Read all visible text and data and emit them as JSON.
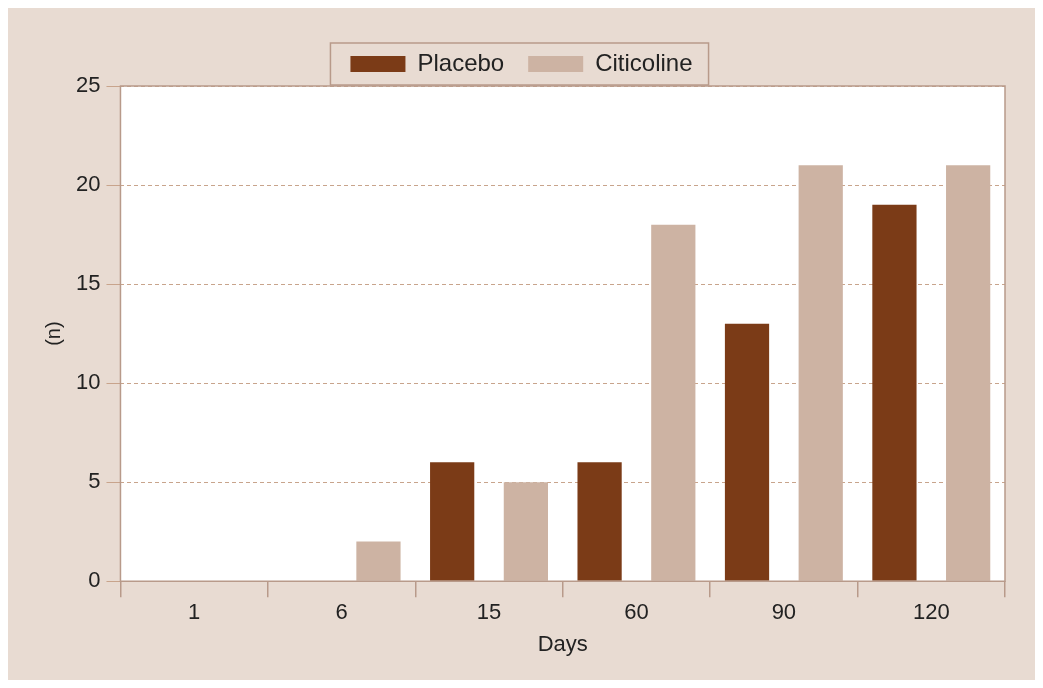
{
  "chart_data": {
    "type": "bar",
    "xlabel": "Days",
    "ylabel": "(n)",
    "categories": [
      "1",
      "6",
      "15",
      "60",
      "90",
      "120"
    ],
    "series": [
      {
        "name": "Placebo",
        "color": "#7b3b17",
        "values": [
          0,
          0,
          6,
          6,
          13,
          19
        ]
      },
      {
        "name": "Citicoline",
        "color": "#cdb3a3",
        "values": [
          0,
          2,
          5,
          18,
          21,
          21
        ]
      }
    ],
    "ylim": [
      0,
      25
    ],
    "yticks": [
      0,
      5,
      10,
      15,
      20,
      25
    ],
    "grid": "y",
    "legend": "top"
  }
}
